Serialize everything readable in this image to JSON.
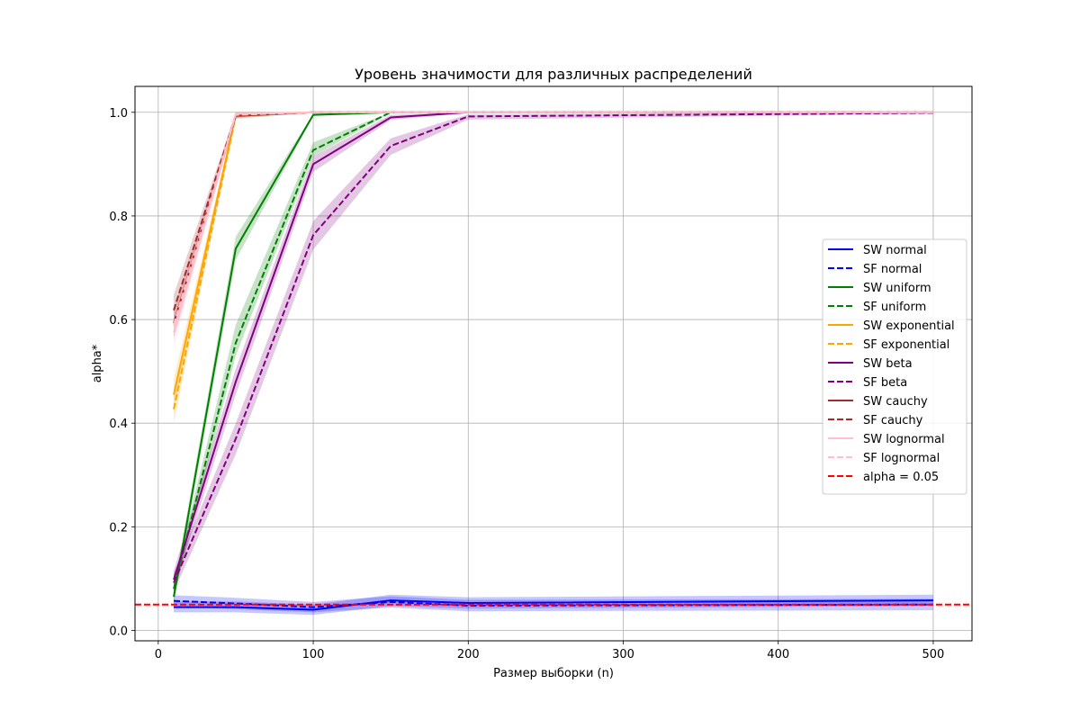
{
  "chart_data": {
    "type": "line",
    "title": "Уровень значимости для различных распределений",
    "xlabel": "Размер выборки (n)",
    "ylabel": "alpha*",
    "xlim": [
      -15,
      525
    ],
    "ylim": [
      -0.02,
      1.05
    ],
    "xticks": [
      0,
      100,
      200,
      300,
      400,
      500
    ],
    "yticks": [
      0.0,
      0.2,
      0.4,
      0.6,
      0.8,
      1.0
    ],
    "xtick_labels": [
      "0",
      "100",
      "200",
      "300",
      "400",
      "500"
    ],
    "ytick_labels": [
      "0.0",
      "0.2",
      "0.4",
      "0.6",
      "0.8",
      "1.0"
    ],
    "grid": true,
    "legend_position": "right",
    "x": [
      10,
      50,
      100,
      150,
      200,
      500
    ],
    "series": [
      {
        "name": "SW normal",
        "color": "#0000ff",
        "dash": "solid",
        "values": [
          0.045,
          0.045,
          0.04,
          0.058,
          0.053,
          0.058
        ],
        "ci_low": [
          0.035,
          0.035,
          0.03,
          0.047,
          0.042,
          0.047
        ],
        "ci_high": [
          0.056,
          0.056,
          0.05,
          0.069,
          0.064,
          0.069
        ]
      },
      {
        "name": "SF normal",
        "color": "#0000ff",
        "dash": "dashed",
        "values": [
          0.057,
          0.052,
          0.045,
          0.055,
          0.048,
          0.05
        ],
        "ci_low": [
          0.046,
          0.041,
          0.035,
          0.044,
          0.037,
          0.039
        ],
        "ci_high": [
          0.068,
          0.063,
          0.055,
          0.066,
          0.059,
          0.061
        ]
      },
      {
        "name": "SW uniform",
        "color": "#008000",
        "dash": "solid",
        "values": [
          0.065,
          0.737,
          0.995,
          1.0,
          1.0,
          1.0
        ],
        "ci_low": [
          0.05,
          0.715,
          0.993,
          1.0,
          1.0,
          1.0
        ],
        "ci_high": [
          0.08,
          0.76,
          0.998,
          1.0,
          1.0,
          1.0
        ]
      },
      {
        "name": "SF uniform",
        "color": "#008000",
        "dash": "dashed",
        "values": [
          0.08,
          0.555,
          0.927,
          1.0,
          1.0,
          1.0
        ],
        "ci_low": [
          0.065,
          0.53,
          0.915,
          0.999,
          1.0,
          1.0
        ],
        "ci_high": [
          0.095,
          0.59,
          0.942,
          1.0,
          1.0,
          1.0
        ]
      },
      {
        "name": "SW exponential",
        "color": "#ffa500",
        "dash": "solid",
        "values": [
          0.455,
          0.995,
          1.0,
          1.0,
          1.0,
          1.0
        ],
        "ci_low": [
          0.43,
          0.99,
          1.0,
          1.0,
          1.0,
          1.0
        ],
        "ci_high": [
          0.485,
          1.0,
          1.0,
          1.0,
          1.0,
          1.0
        ]
      },
      {
        "name": "SF exponential",
        "color": "#ffa500",
        "dash": "dashed",
        "values": [
          0.427,
          0.993,
          1.0,
          1.0,
          1.0,
          1.0
        ],
        "ci_low": [
          0.4,
          0.988,
          1.0,
          1.0,
          1.0,
          1.0
        ],
        "ci_high": [
          0.455,
          0.998,
          1.0,
          1.0,
          1.0,
          1.0
        ]
      },
      {
        "name": "SW beta",
        "color": "#800080",
        "dash": "solid",
        "values": [
          0.098,
          0.48,
          0.9,
          0.99,
          1.0,
          1.0
        ],
        "ci_low": [
          0.08,
          0.455,
          0.885,
          0.985,
          0.999,
          1.0
        ],
        "ci_high": [
          0.115,
          0.505,
          0.915,
          0.995,
          1.0,
          1.0
        ]
      },
      {
        "name": "SF beta",
        "color": "#800080",
        "dash": "dashed",
        "values": [
          0.092,
          0.37,
          0.763,
          0.935,
          0.992,
          0.999
        ],
        "ci_low": [
          0.075,
          0.34,
          0.735,
          0.918,
          0.986,
          0.997
        ],
        "ci_high": [
          0.11,
          0.4,
          0.79,
          0.95,
          0.996,
          1.0
        ]
      },
      {
        "name": "SW cauchy",
        "color": "#a52a2a",
        "dash": "solid",
        "values": [
          0.593,
          0.993,
          1.0,
          1.0,
          1.0,
          1.0
        ],
        "ci_low": [
          0.565,
          0.988,
          1.0,
          1.0,
          1.0,
          1.0
        ],
        "ci_high": [
          0.62,
          0.998,
          1.0,
          1.0,
          1.0,
          1.0
        ]
      },
      {
        "name": "SF cauchy",
        "color": "#a52a2a",
        "dash": "dashed",
        "values": [
          0.618,
          0.995,
          1.0,
          1.0,
          1.0,
          1.0
        ],
        "ci_low": [
          0.59,
          0.99,
          1.0,
          1.0,
          1.0,
          1.0
        ],
        "ci_high": [
          0.648,
          1.0,
          1.0,
          1.0,
          1.0,
          1.0
        ]
      },
      {
        "name": "SW lognormal",
        "color": "#ffc0cb",
        "dash": "solid",
        "values": [
          0.575,
          0.997,
          1.0,
          1.0,
          1.0,
          1.0
        ],
        "ci_low": [
          0.545,
          0.993,
          1.0,
          1.0,
          1.0,
          1.0
        ],
        "ci_high": [
          0.605,
          1.0,
          1.0,
          1.0,
          1.0,
          1.0
        ]
      },
      {
        "name": "SF lognormal",
        "color": "#ffc0cb",
        "dash": "dashed",
        "values": [
          0.59,
          0.995,
          1.0,
          1.0,
          1.0,
          1.0
        ],
        "ci_low": [
          0.56,
          0.99,
          1.0,
          1.0,
          1.0,
          1.0
        ],
        "ci_high": [
          0.62,
          1.0,
          1.0,
          1.0,
          1.0,
          1.0
        ]
      }
    ],
    "reference_line": {
      "name": "alpha = 0.05",
      "y": 0.05,
      "color": "#ff0000",
      "dash": "dashed"
    }
  }
}
